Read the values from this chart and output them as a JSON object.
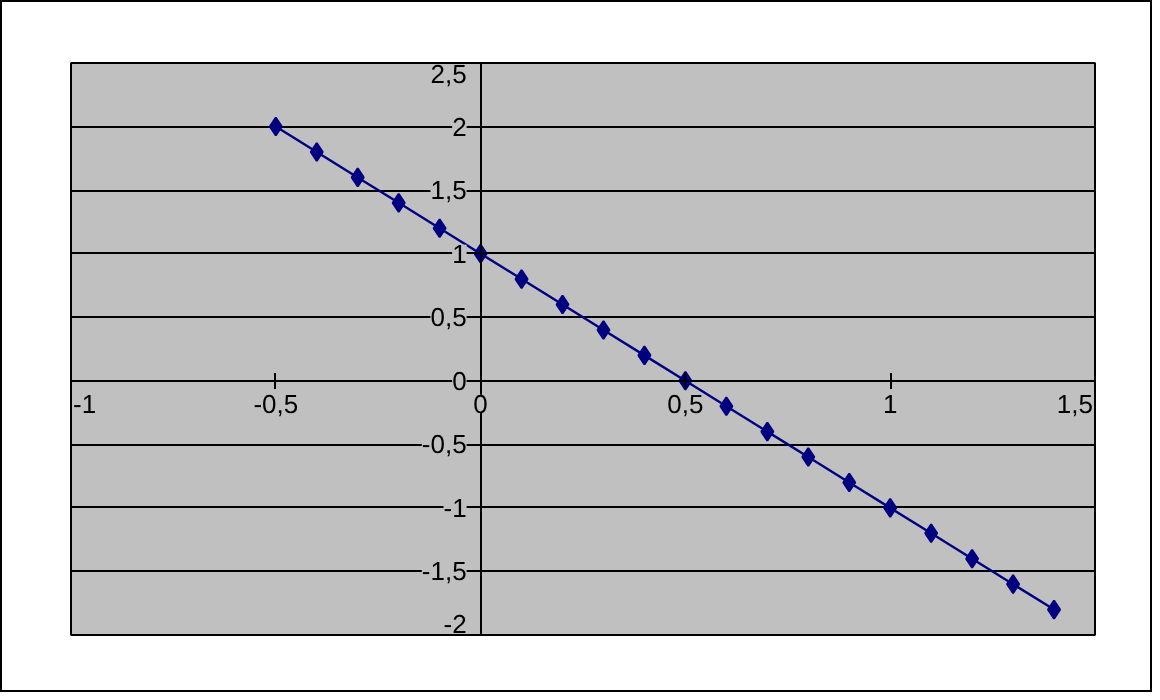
{
  "chart_data": {
    "type": "line",
    "x": [
      -0.5,
      -0.4,
      -0.3,
      -0.2,
      -0.1,
      0,
      0.1,
      0.2,
      0.3,
      0.4,
      0.5,
      0.6,
      0.7,
      0.8,
      0.9,
      1.0,
      1.1,
      1.2,
      1.3,
      1.4
    ],
    "series": [
      {
        "color": "#000080",
        "values": [
          2,
          1.8,
          1.6,
          1.4,
          1.2,
          1,
          0.8,
          0.6,
          0.4,
          0.2,
          0,
          -0.2,
          -0.4,
          -0.6,
          -0.8,
          -1,
          -1.2,
          -1.4,
          -1.6,
          -1.8
        ]
      }
    ],
    "xlim": [
      -1,
      1.5
    ],
    "xticks": [
      {
        "value": -1,
        "label": "-1"
      },
      {
        "value": -0.5,
        "label": "-0,5"
      },
      0,
      {
        "value": 0.5,
        "label": "0,5"
      },
      1,
      {
        "value": 1.5,
        "label": "1,5"
      }
    ],
    "ylim": [
      -2,
      2.5
    ],
    "yticks": [
      {
        "value": -2,
        "label": "-2"
      },
      {
        "value": -1.5,
        "label": "-1,5"
      },
      {
        "value": -1,
        "label": "-1"
      },
      {
        "value": -0.5,
        "label": "-0,5"
      },
      0,
      {
        "value": 0.5,
        "label": "0,5"
      },
      1,
      {
        "value": 1.5,
        "label": "1,5"
      },
      2,
      {
        "value": 2.5,
        "label": "2,5"
      }
    ],
    "grid": "y",
    "marker": "diamond",
    "line_style": "solid"
  }
}
